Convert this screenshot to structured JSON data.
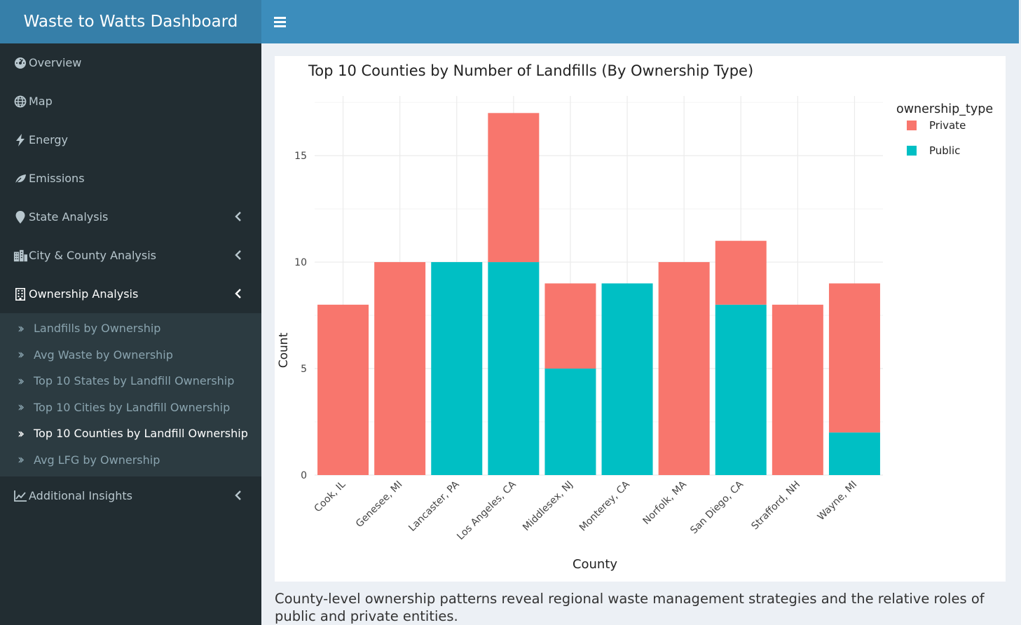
{
  "app": {
    "title": "Waste to Watts Dashboard"
  },
  "sidebar": {
    "items": [
      {
        "label": "Overview",
        "icon": "dashboard-icon"
      },
      {
        "label": "Map",
        "icon": "globe-icon"
      },
      {
        "label": "Energy",
        "icon": "bolt-icon"
      },
      {
        "label": "Emissions",
        "icon": "leaf-icon"
      },
      {
        "label": "State Analysis",
        "icon": "map-marker-icon"
      },
      {
        "label": "City & County Analysis",
        "icon": "city-icon"
      },
      {
        "label": "Ownership Analysis",
        "icon": "building-icon"
      },
      {
        "label": "Additional Insights",
        "icon": "line-chart-icon"
      }
    ],
    "submenu": [
      {
        "label": "Landfills by Ownership"
      },
      {
        "label": "Avg Waste by Ownership"
      },
      {
        "label": "Top 10 States by Landfill Ownership"
      },
      {
        "label": "Top 10 Cities by Landfill Ownership"
      },
      {
        "label": "Top 10 Counties by Landfill Ownership",
        "active": true
      },
      {
        "label": "Avg LFG by Ownership"
      }
    ]
  },
  "colors": {
    "private": "#f8766d",
    "public": "#00bfc4",
    "grid": "#ebebeb"
  },
  "chart_data": {
    "type": "bar",
    "stacked": true,
    "title": "Top 10 Counties by Number of Landfills (By Ownership Type)",
    "xlabel": "County",
    "ylabel": "Count",
    "categories": [
      "Cook, IL",
      "Genesee, MI",
      "Lancaster, PA",
      "Los Angeles, CA",
      "Middlesex, NJ",
      "Monterey, CA",
      "Norfolk, MA",
      "San Diego, CA",
      "Strafford, NH",
      "Wayne, MI"
    ],
    "series": [
      {
        "name": "Private",
        "values": [
          8,
          10,
          0,
          7,
          4,
          0,
          10,
          3,
          8,
          7
        ]
      },
      {
        "name": "Public",
        "values": [
          0,
          0,
          10,
          10,
          5,
          9,
          0,
          8,
          0,
          2
        ]
      }
    ],
    "yticks": [
      0,
      5,
      10,
      15
    ],
    "ylim": [
      0,
      17.8
    ],
    "legend_title": "ownership_type",
    "legend_position": "right",
    "grid": true
  },
  "caption": "County-level ownership patterns reveal regional waste management strategies and the relative roles of public and private entities."
}
